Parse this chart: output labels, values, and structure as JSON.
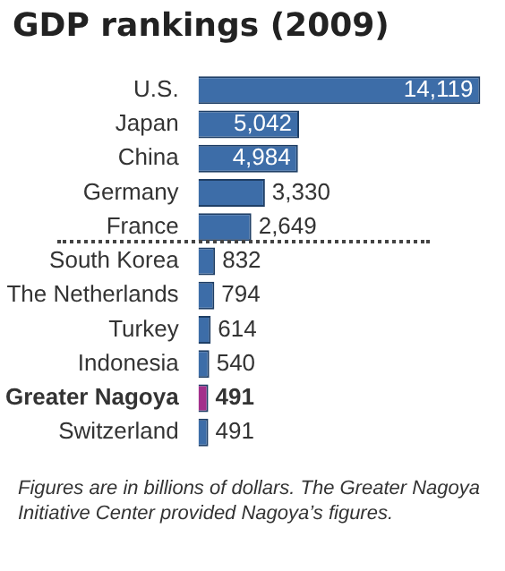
{
  "chart_data": {
    "type": "bar",
    "orientation": "horizontal",
    "title": "GDP rankings (2009)",
    "categories": [
      "U.S.",
      "Japan",
      "China",
      "Germany",
      "France",
      "South Korea",
      "The Netherlands",
      "Turkey",
      "Indonesia",
      "Greater Nagoya",
      "Switzerland"
    ],
    "values": [
      14119,
      5042,
      4984,
      3330,
      2649,
      832,
      794,
      614,
      540,
      491,
      491
    ],
    "value_labels": [
      "14,119",
      "5,042",
      "4,984",
      "3,330",
      "2,649",
      "832",
      "794",
      "614",
      "540",
      "491",
      "491"
    ],
    "colors": [
      "#3d6da8",
      "#3d6da8",
      "#3d6da8",
      "#3d6da8",
      "#3d6da8",
      "#3d6da8",
      "#3d6da8",
      "#3d6da8",
      "#3d6da8",
      "#a3308c",
      "#3d6da8"
    ],
    "annotations": [
      "Figures are in billions of dollars. The Greater Nagoya Initiative Center provided Nagoya’s figures."
    ]
  }
}
